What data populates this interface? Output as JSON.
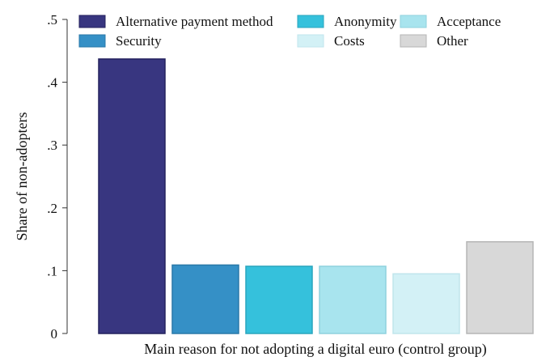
{
  "chart_data": {
    "type": "bar",
    "title": "",
    "xlabel": "Main reason for not adopting a digital euro (control group)",
    "ylabel": "Share of non-adopters",
    "ylim": [
      0,
      0.5
    ],
    "yticks": [
      0,
      0.1,
      0.2,
      0.3,
      0.4,
      0.5
    ],
    "ytick_labels": [
      "0",
      ".1",
      ".2",
      ".3",
      ".4",
      ".5"
    ],
    "grid": false,
    "legend_position": "top",
    "categories": [
      "Alternative payment method",
      "Security",
      "Anonymity",
      "Acceptance",
      "Costs",
      "Other"
    ],
    "values": [
      0.437,
      0.109,
      0.107,
      0.107,
      0.095,
      0.146
    ],
    "colors": [
      "#383680",
      "#3590c6",
      "#35c1dc",
      "#a8e4ee",
      "#d3f1f6",
      "#d8d8d8"
    ],
    "borders": [
      "#24225e",
      "#2a78a8",
      "#2aa5bd",
      "#8fd2de",
      "#c0e5ec",
      "#b5b5b5"
    ]
  }
}
